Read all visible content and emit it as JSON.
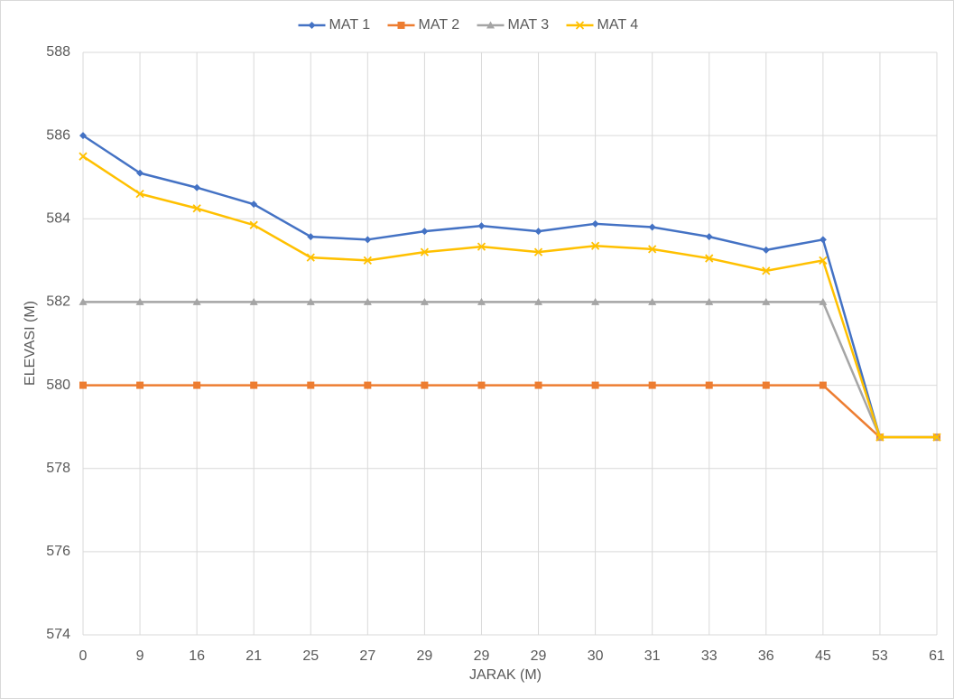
{
  "chart_data": {
    "type": "line",
    "x_label": "JARAK (M)",
    "y_label": "ELEVASI (M)",
    "categories": [
      "0",
      "9",
      "16",
      "21",
      "25",
      "27",
      "29",
      "29",
      "29",
      "30",
      "31",
      "33",
      "36",
      "45",
      "53",
      "61"
    ],
    "series": [
      {
        "name": "MAT 1",
        "color": "#4472c4",
        "marker": "diamond",
        "values": [
          586.0,
          585.1,
          584.75,
          584.35,
          583.57,
          583.5,
          583.7,
          583.83,
          583.7,
          583.88,
          583.8,
          583.57,
          583.25,
          583.5,
          578.75,
          578.75
        ]
      },
      {
        "name": "MAT 2",
        "color": "#ed7d31",
        "marker": "square",
        "values": [
          580,
          580,
          580,
          580,
          580,
          580,
          580,
          580,
          580,
          580,
          580,
          580,
          580,
          580,
          578.75,
          578.75
        ]
      },
      {
        "name": "MAT 3",
        "color": "#a5a5a5",
        "marker": "triangle",
        "values": [
          582,
          582,
          582,
          582,
          582,
          582,
          582,
          582,
          582,
          582,
          582,
          582,
          582,
          582,
          578.75,
          578.75
        ]
      },
      {
        "name": "MAT 4",
        "color": "#ffc000",
        "marker": "x",
        "values": [
          585.5,
          584.6,
          584.25,
          583.85,
          583.07,
          583.0,
          583.2,
          583.33,
          583.2,
          583.35,
          583.27,
          583.05,
          582.75,
          583.0,
          578.75,
          578.75
        ]
      }
    ],
    "ylim": [
      574,
      588
    ],
    "yticks": [
      574,
      576,
      578,
      580,
      582,
      584,
      586,
      588
    ],
    "grid": true,
    "legend": "top"
  }
}
